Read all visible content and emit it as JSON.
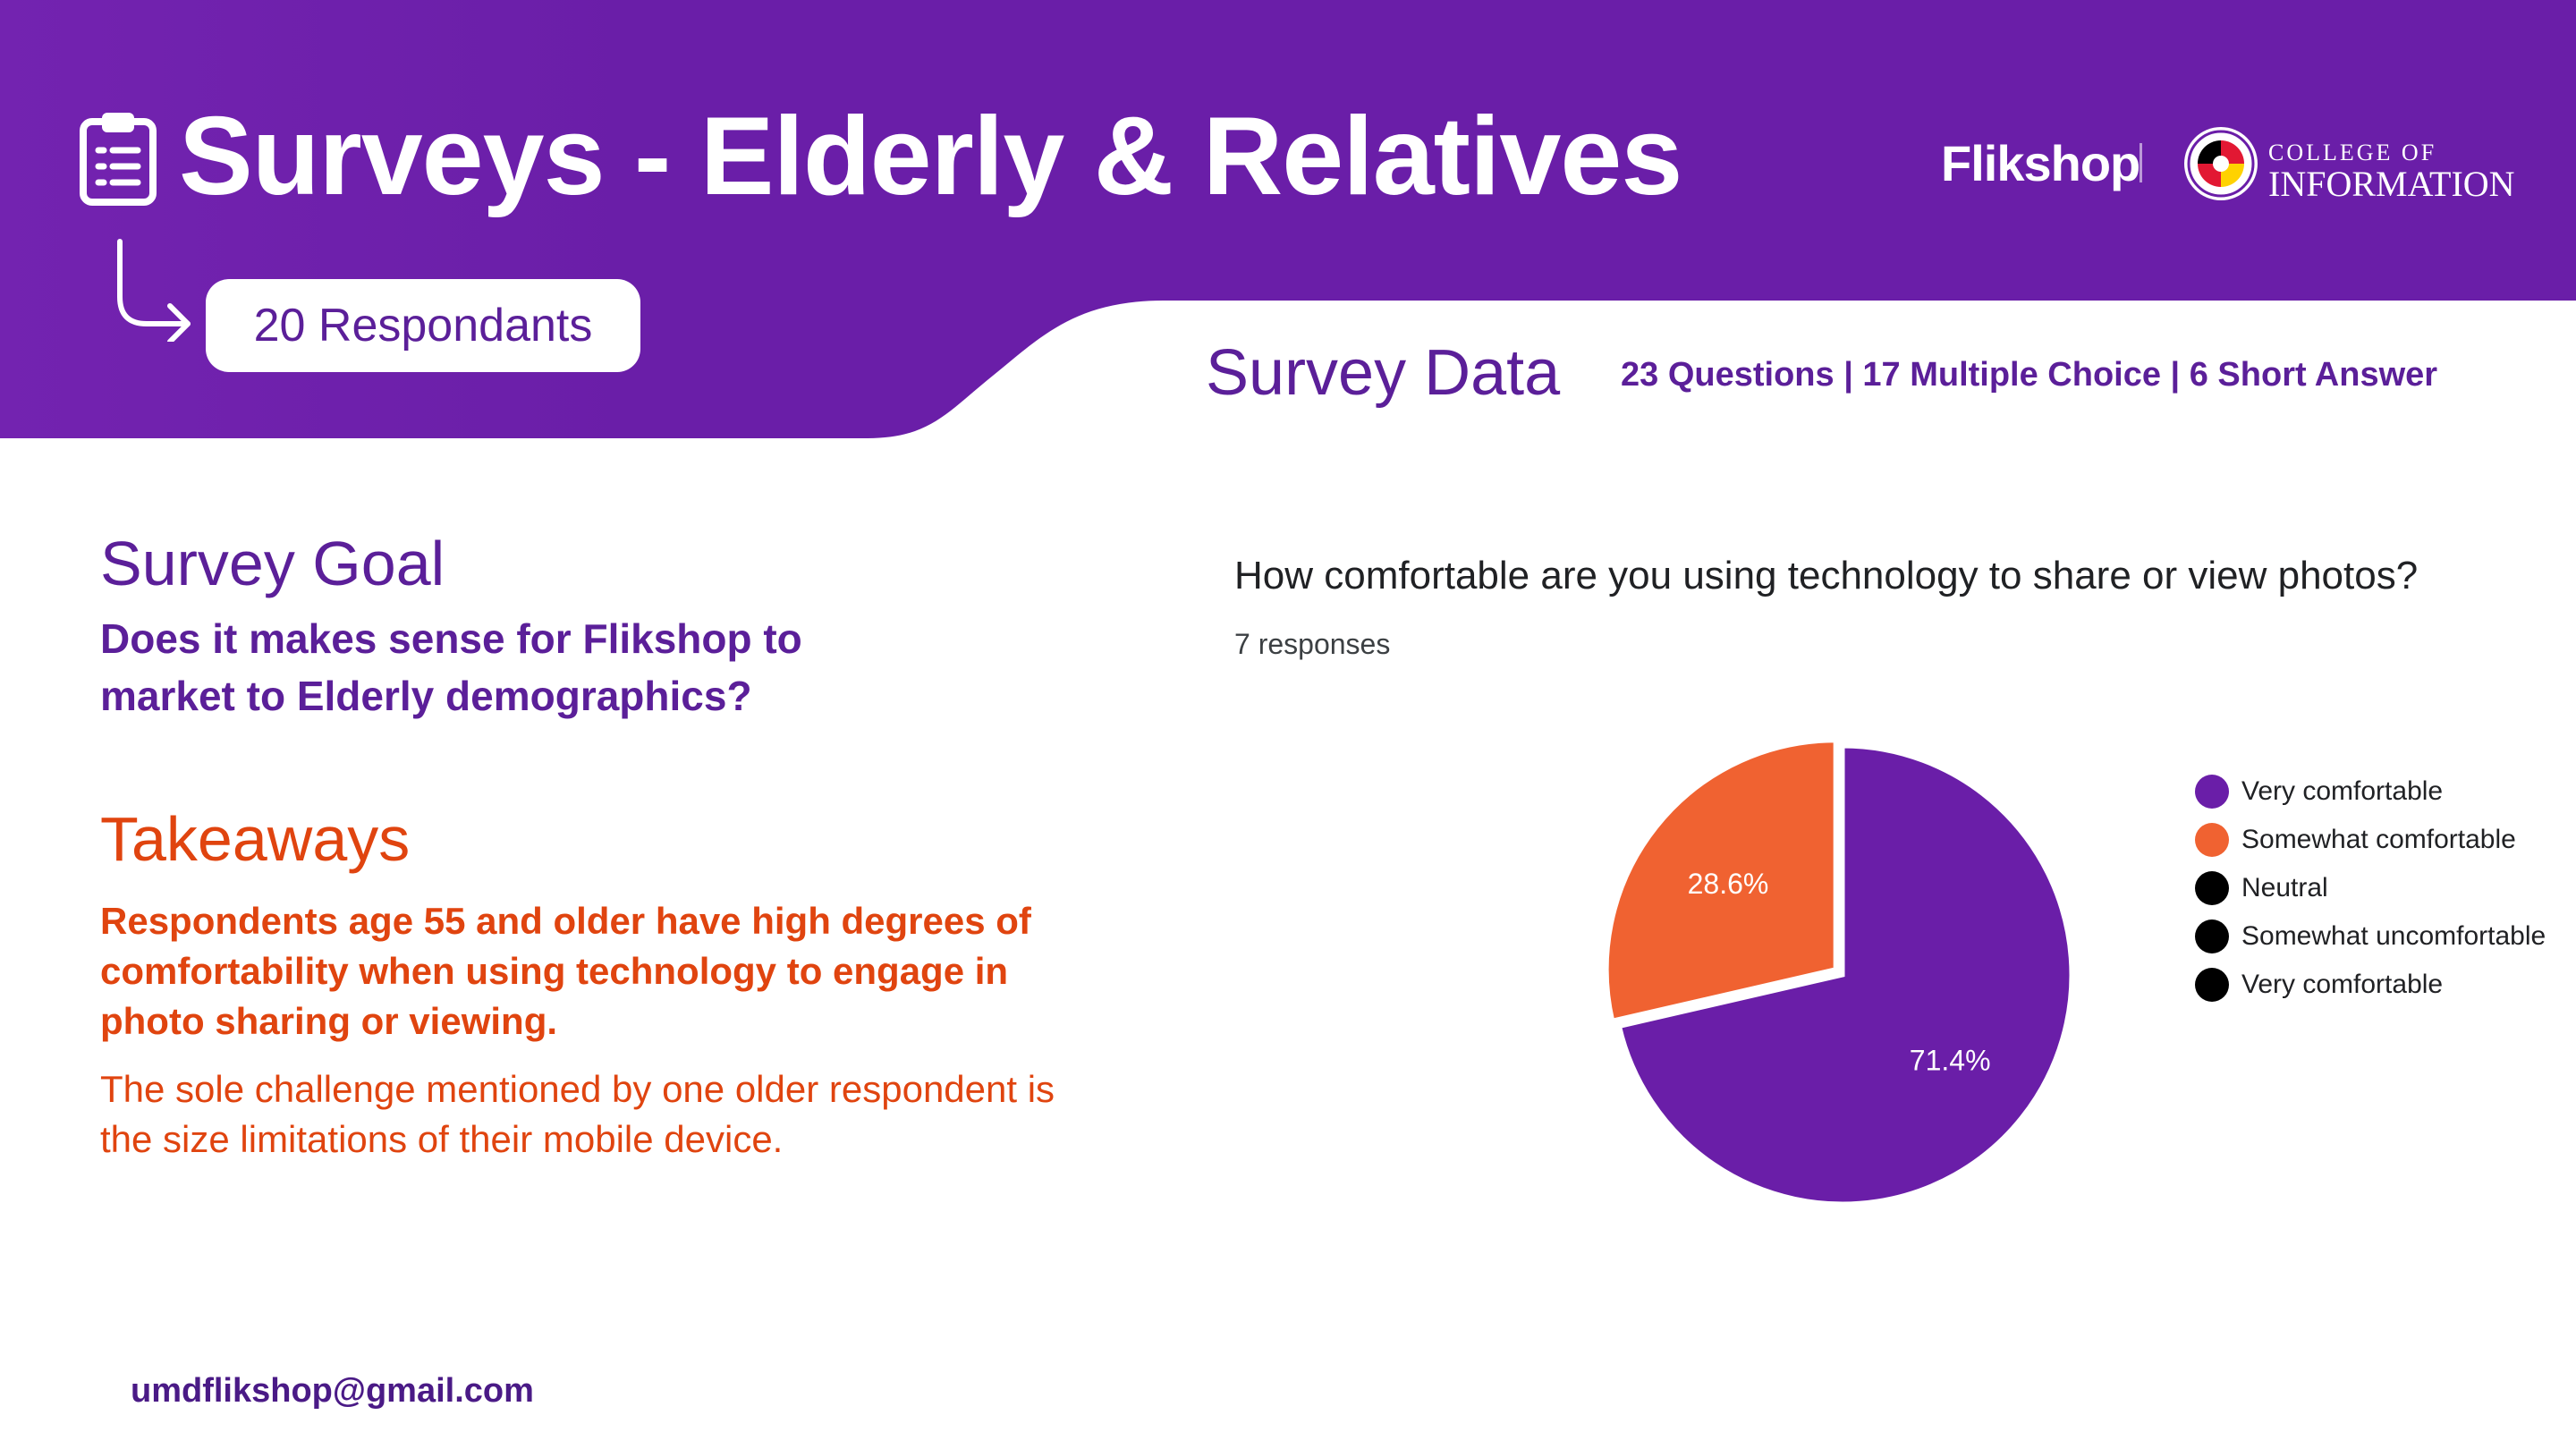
{
  "header": {
    "title": "Surveys - Elderly & Relatives",
    "respondants_label": "20 Respondants",
    "brand_name": "Flikshop",
    "college_line1": "COLLEGE OF",
    "college_line2": "INFORMATION"
  },
  "survey_data": {
    "title": "Survey Data",
    "stats": "23 Questions | 17 Multiple Choice | 6 Short Answer"
  },
  "goal": {
    "title": "Survey Goal",
    "text": "Does it makes sense for Flikshop to market to Elderly demographics?"
  },
  "takeaways": {
    "title": "Takeaways",
    "bold_text": "Respondents age 55 and older have high degrees of comfortability when using technology to engage in photo sharing or viewing.",
    "text": "The sole challenge mentioned by one older respondent is the size limitations of their mobile device."
  },
  "footer": {
    "email": "umdflikshop@gmail.com"
  },
  "colors": {
    "purple": "#6a1ea8",
    "orange": "#f06231",
    "dark_purple_text": "#5b1f99",
    "orange_text": "#e0440f"
  },
  "icons": [
    "clipboard-icon",
    "arrow-return-icon",
    "umd-seal-icon"
  ],
  "chart_data": {
    "type": "pie",
    "title": "How comfortable are you using technology to share or view photos?",
    "subtitle": "7 responses",
    "categories": [
      "Very comfortable",
      "Somewhat comfortable",
      "Neutral",
      "Somewhat uncomfortable",
      "Very comfortable"
    ],
    "values": [
      71.4,
      28.6,
      0,
      0,
      0
    ],
    "value_labels": [
      "71.4%",
      "28.6%",
      "",
      "",
      ""
    ],
    "colors": [
      "#6a1ea8",
      "#f06231",
      "#000000",
      "#000000",
      "#000000"
    ],
    "legend_position": "right"
  }
}
